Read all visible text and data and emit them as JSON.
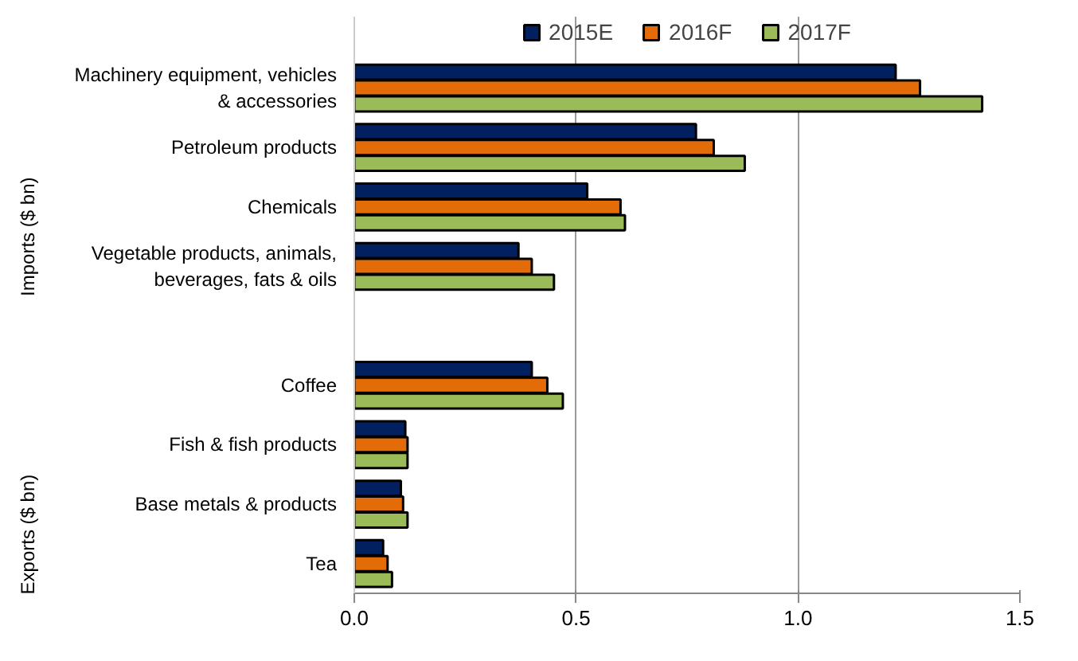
{
  "chart_data": {
    "type": "bar",
    "orientation": "horizontal",
    "categories": [
      "Machinery equipment, vehicles & accessories",
      "Petroleum products",
      "Chemicals",
      "Vegetable products, animals, beverages, fats & oils",
      null,
      "Coffee",
      "Fish & fish products",
      "Base metals & products",
      "Tea"
    ],
    "series": [
      {
        "name": "2015E",
        "color": "#002060",
        "values": [
          1.22,
          0.77,
          0.525,
          0.37,
          null,
          0.4,
          0.115,
          0.105,
          0.065
        ]
      },
      {
        "name": "2016F",
        "color": "#e36c09",
        "values": [
          1.275,
          0.81,
          0.6,
          0.4,
          null,
          0.435,
          0.12,
          0.11,
          0.075
        ]
      },
      {
        "name": "2017F",
        "color": "#9bbb59",
        "values": [
          1.415,
          0.88,
          0.61,
          0.45,
          null,
          0.47,
          0.12,
          0.12,
          0.085
        ]
      }
    ],
    "xlim": [
      0,
      1.5
    ],
    "xticks": [
      {
        "value": 0,
        "label": "0.0"
      },
      0.5,
      {
        "value": 1,
        "label": "1.0"
      },
      1.5
    ],
    "grid": "x",
    "legend": "top",
    "annotations": [
      "Imports ($ bn)",
      "Exports ($ bn)"
    ]
  }
}
